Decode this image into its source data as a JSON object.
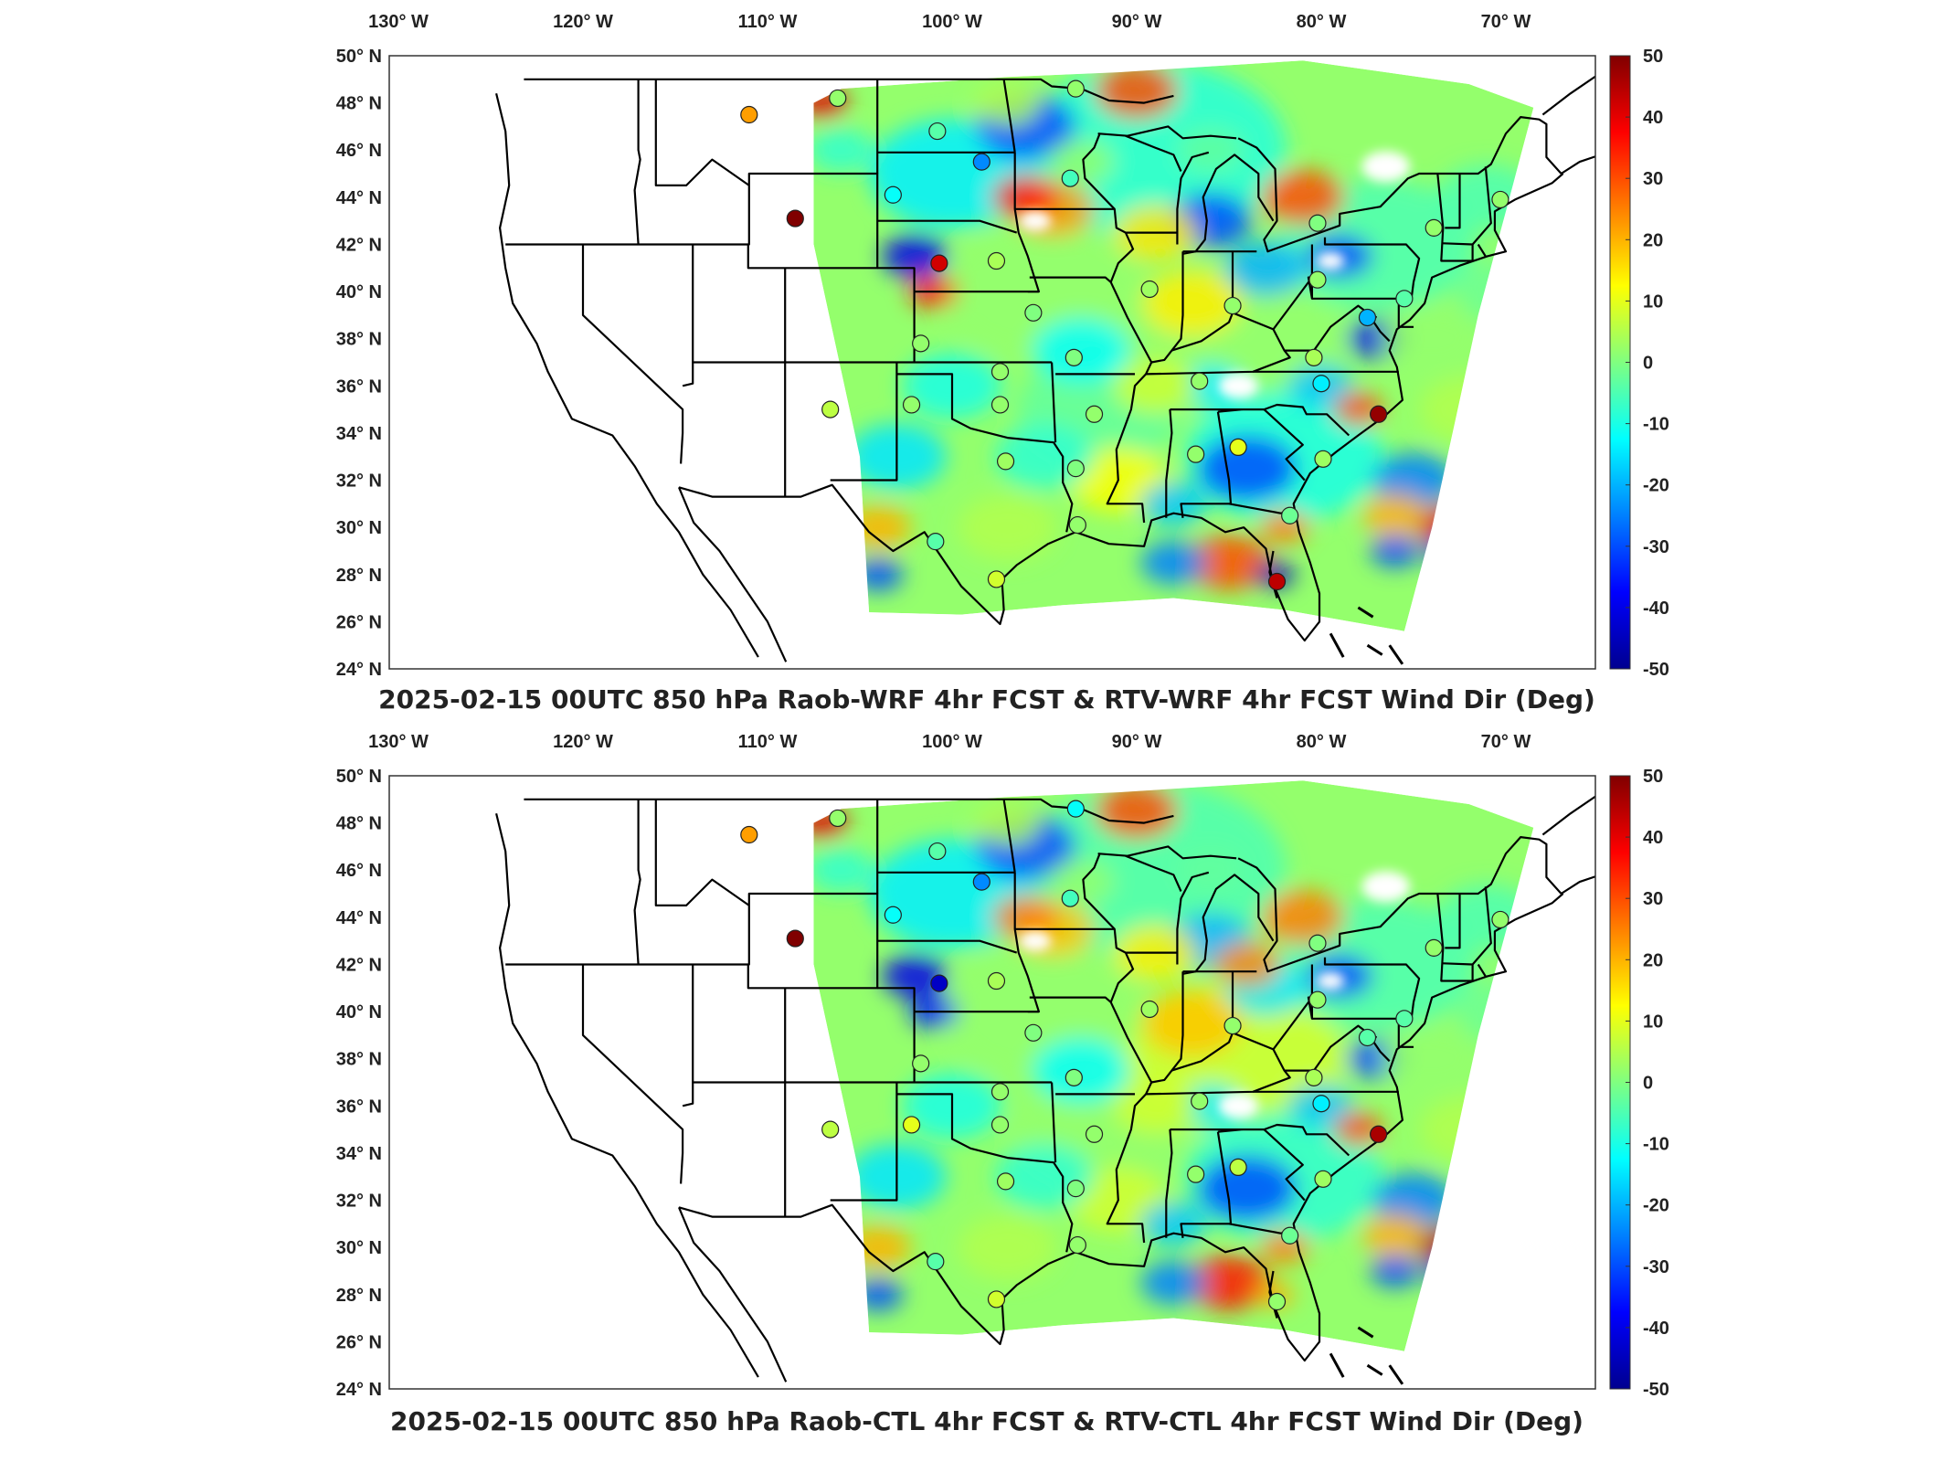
{
  "colors": {
    "colormap": [
      "#00008f",
      "#0000ff",
      "#0080ff",
      "#00ffff",
      "#80ff80",
      "#ffff00",
      "#ff8000",
      "#ff0000",
      "#800000"
    ],
    "border": "#000000",
    "background": "#ffffff"
  },
  "longitude_labels": [
    "130° W",
    "120° W",
    "110° W",
    "100° W",
    "90° W",
    "80° W",
    "70° W"
  ],
  "latitude_labels": [
    "50° N",
    "48° N",
    "46° N",
    "44° N",
    "42° N",
    "40° N",
    "38° N",
    "36° N",
    "34° N",
    "32° N",
    "30° N",
    "28° N",
    "26° N",
    "24° N"
  ],
  "colorbar_ticks": [
    "50",
    "40",
    "30",
    "20",
    "10",
    "0",
    "-10",
    "-20",
    "-30",
    "-40",
    "-50"
  ],
  "panels": [
    {
      "title": "2025-02-15 00UTC 850 hPa Raob-WRF 4hr FCST & RTV-WRF 4hr FCST Wind Dir (Deg)",
      "stations": [
        {
          "lon": -111.0,
          "lat": 47.5,
          "v": 22
        },
        {
          "lon": -106.2,
          "lat": 48.2,
          "v": 2
        },
        {
          "lon": -100.8,
          "lat": 46.8,
          "v": -4
        },
        {
          "lon": -98.4,
          "lat": 45.5,
          "v": -24
        },
        {
          "lon": -93.6,
          "lat": 44.8,
          "v": -6
        },
        {
          "lon": -103.2,
          "lat": 44.1,
          "v": -12
        },
        {
          "lon": -108.5,
          "lat": 43.1,
          "v": 50
        },
        {
          "lon": -100.7,
          "lat": 41.2,
          "v": 42
        },
        {
          "lon": -97.6,
          "lat": 41.3,
          "v": 4
        },
        {
          "lon": -95.6,
          "lat": 39.1,
          "v": 0
        },
        {
          "lon": -101.7,
          "lat": 37.8,
          "v": 2
        },
        {
          "lon": -97.4,
          "lat": 36.6,
          "v": 2
        },
        {
          "lon": -97.4,
          "lat": 35.2,
          "v": 2
        },
        {
          "lon": -102.2,
          "lat": 35.2,
          "v": 2
        },
        {
          "lon": -106.6,
          "lat": 35.0,
          "v": 6
        },
        {
          "lon": -97.1,
          "lat": 32.8,
          "v": 3
        },
        {
          "lon": -93.3,
          "lat": 32.5,
          "v": 0
        },
        {
          "lon": -92.3,
          "lat": 34.8,
          "v": 2
        },
        {
          "lon": -93.4,
          "lat": 37.2,
          "v": 0
        },
        {
          "lon": -89.3,
          "lat": 40.1,
          "v": 3
        },
        {
          "lon": -86.6,
          "lat": 36.2,
          "v": 2
        },
        {
          "lon": -86.8,
          "lat": 33.1,
          "v": 2
        },
        {
          "lon": -84.5,
          "lat": 33.4,
          "v": 10
        },
        {
          "lon": -84.8,
          "lat": 39.4,
          "v": 2
        },
        {
          "lon": -80.2,
          "lat": 40.5,
          "v": 2
        },
        {
          "lon": -80.4,
          "lat": 37.2,
          "v": 4
        },
        {
          "lon": -80.0,
          "lat": 36.1,
          "v": -14
        },
        {
          "lon": -76.9,
          "lat": 34.8,
          "v": 48
        },
        {
          "lon": -79.9,
          "lat": 32.9,
          "v": 3
        },
        {
          "lon": -81.7,
          "lat": 30.5,
          "v": -2
        },
        {
          "lon": -82.4,
          "lat": 27.7,
          "v": 44
        },
        {
          "lon": -93.2,
          "lat": 30.1,
          "v": 2
        },
        {
          "lon": -97.6,
          "lat": 27.8,
          "v": 8
        },
        {
          "lon": -100.9,
          "lat": 29.4,
          "v": -4
        },
        {
          "lon": -77.5,
          "lat": 38.9,
          "v": -20
        },
        {
          "lon": -75.5,
          "lat": 39.7,
          "v": -4
        },
        {
          "lon": -73.9,
          "lat": 42.7,
          "v": 2
        },
        {
          "lon": -70.3,
          "lat": 43.9,
          "v": 2
        },
        {
          "lon": -80.2,
          "lat": 42.9,
          "v": 0
        },
        {
          "lon": -93.3,
          "lat": 48.6,
          "v": 2
        }
      ]
    },
    {
      "title": "2025-02-15 00UTC 850 hPa Raob-CTL 4hr FCST & RTV-CTL 4hr FCST Wind Dir (Deg)",
      "stations": [
        {
          "lon": -111.0,
          "lat": 47.5,
          "v": 22
        },
        {
          "lon": -106.2,
          "lat": 48.2,
          "v": 2
        },
        {
          "lon": -100.8,
          "lat": 46.8,
          "v": -4
        },
        {
          "lon": -98.4,
          "lat": 45.5,
          "v": -24
        },
        {
          "lon": -93.6,
          "lat": 44.8,
          "v": -6
        },
        {
          "lon": -103.2,
          "lat": 44.1,
          "v": -12
        },
        {
          "lon": -108.5,
          "lat": 43.1,
          "v": 50
        },
        {
          "lon": -100.7,
          "lat": 41.2,
          "v": -44
        },
        {
          "lon": -97.6,
          "lat": 41.3,
          "v": 4
        },
        {
          "lon": -95.6,
          "lat": 39.1,
          "v": 0
        },
        {
          "lon": -101.7,
          "lat": 37.8,
          "v": 2
        },
        {
          "lon": -97.4,
          "lat": 36.6,
          "v": 2
        },
        {
          "lon": -97.4,
          "lat": 35.2,
          "v": 2
        },
        {
          "lon": -102.2,
          "lat": 35.2,
          "v": 10
        },
        {
          "lon": -106.6,
          "lat": 35.0,
          "v": 6
        },
        {
          "lon": -97.1,
          "lat": 32.8,
          "v": 3
        },
        {
          "lon": -93.3,
          "lat": 32.5,
          "v": 0
        },
        {
          "lon": -92.3,
          "lat": 34.8,
          "v": 2
        },
        {
          "lon": -93.4,
          "lat": 37.2,
          "v": 0
        },
        {
          "lon": -89.3,
          "lat": 40.1,
          "v": 3
        },
        {
          "lon": -86.6,
          "lat": 36.2,
          "v": 2
        },
        {
          "lon": -86.8,
          "lat": 33.1,
          "v": 2
        },
        {
          "lon": -84.5,
          "lat": 33.4,
          "v": 6
        },
        {
          "lon": -84.8,
          "lat": 39.4,
          "v": 2
        },
        {
          "lon": -80.2,
          "lat": 40.5,
          "v": 2
        },
        {
          "lon": -80.4,
          "lat": 37.2,
          "v": 4
        },
        {
          "lon": -80.0,
          "lat": 36.1,
          "v": -14
        },
        {
          "lon": -76.9,
          "lat": 34.8,
          "v": 46
        },
        {
          "lon": -79.9,
          "lat": 32.9,
          "v": 3
        },
        {
          "lon": -81.7,
          "lat": 30.5,
          "v": -2
        },
        {
          "lon": -82.4,
          "lat": 27.7,
          "v": 2
        },
        {
          "lon": -93.2,
          "lat": 30.1,
          "v": 2
        },
        {
          "lon": -97.6,
          "lat": 27.8,
          "v": 8
        },
        {
          "lon": -100.9,
          "lat": 29.4,
          "v": -4
        },
        {
          "lon": -77.5,
          "lat": 38.9,
          "v": -4
        },
        {
          "lon": -75.5,
          "lat": 39.7,
          "v": -4
        },
        {
          "lon": -73.9,
          "lat": 42.7,
          "v": 2
        },
        {
          "lon": -70.3,
          "lat": 43.9,
          "v": 2
        },
        {
          "lon": -80.2,
          "lat": 42.9,
          "v": 0
        },
        {
          "lon": -93.3,
          "lat": 48.6,
          "v": -12
        }
      ]
    }
  ]
}
